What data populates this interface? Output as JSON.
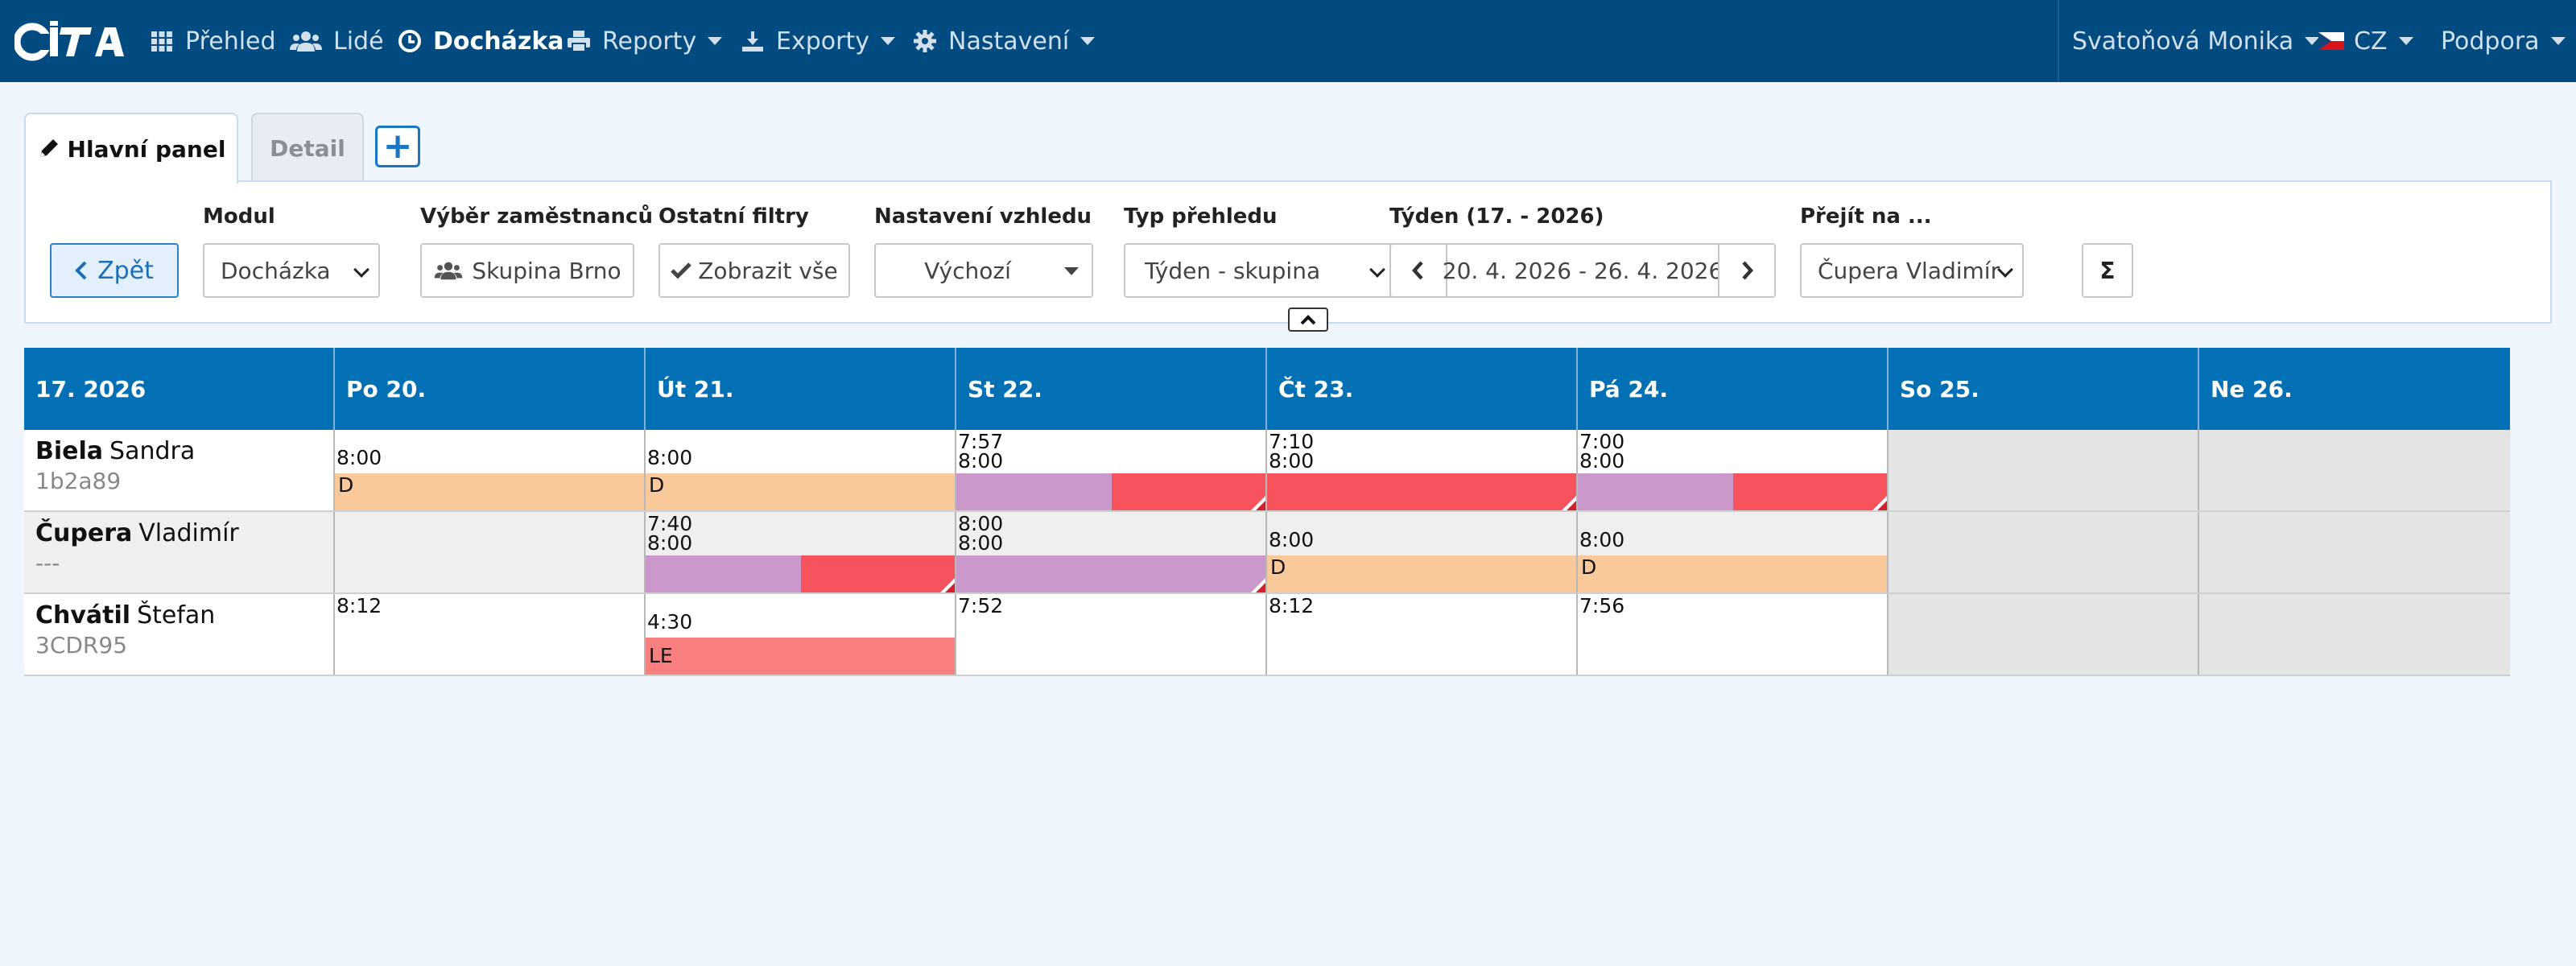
{
  "colors": {
    "nav_bg": "#014b81",
    "header_bg": "#0370b6",
    "vacation": "#f9c99c",
    "work_purple": "#cb98cb",
    "absence_red": "#f6535c",
    "leave_pink": "#fa7f7f",
    "weekend": "#e4e4e4"
  },
  "nav": {
    "logo_text": "CITA",
    "items": [
      {
        "label": "Přehled",
        "icon": "grid-icon"
      },
      {
        "label": "Lidé",
        "icon": "users-icon"
      },
      {
        "label": "Docházka",
        "icon": "clock-icon"
      },
      {
        "label": "Reporty",
        "icon": "printer-icon"
      },
      {
        "label": "Exporty",
        "icon": "export-icon"
      },
      {
        "label": "Nastavení",
        "icon": "gear-icon"
      }
    ],
    "user": "Svatoňová Monika",
    "language": "CZ",
    "support": "Podpora"
  },
  "tabs": {
    "main": "Hlavní panel",
    "detail": "Detail",
    "add": "+"
  },
  "filters": {
    "back": "Zpět",
    "module_label": "Modul",
    "module_value": "Docházka",
    "employees_label": "Výběr zaměstnanců",
    "employees_value": "Skupina Brno",
    "other_label": "Ostatní filtry",
    "other_value": "Zobrazit vše",
    "look_label": "Nastavení vzhledu",
    "look_value": "Výchozí",
    "view_label": "Typ přehledu",
    "view_value": "Týden - skupina",
    "week_label": "Týden (17. - 2026)",
    "week_range": "20. 4. 2026 - 26. 4. 2026",
    "goto_label": "Přejít na ...",
    "goto_value": "Čupera Vladimír",
    "sum": "Σ"
  },
  "grid": {
    "week_title": "17. 2026",
    "days": [
      "Po 20.",
      "Út 21.",
      "St 22.",
      "Čt 23.",
      "Pá 24.",
      "So 25.",
      "Ne 26."
    ],
    "rows": [
      {
        "last": "Biela",
        "first": "Sandra",
        "code": "1b2a89",
        "cells": [
          {
            "times": [
              "8:00"
            ],
            "bar": [
              {
                "type": "vacation",
                "label": "D",
                "w": 1
              }
            ]
          },
          {
            "times": [
              "8:00"
            ],
            "bar": [
              {
                "type": "vacation",
                "label": "D",
                "w": 1
              }
            ]
          },
          {
            "times": [
              "7:57",
              "8:00"
            ],
            "bar": [
              {
                "type": "work",
                "w": 0.5
              },
              {
                "type": "absence",
                "w": 0.5,
                "flag": true
              }
            ]
          },
          {
            "times": [
              "7:10",
              "8:00"
            ],
            "bar": [
              {
                "type": "absence",
                "w": 1,
                "flag": true
              }
            ]
          },
          {
            "times": [
              "7:00",
              "8:00"
            ],
            "bar": [
              {
                "type": "work",
                "w": 0.5
              },
              {
                "type": "absence",
                "w": 0.5,
                "flag": true
              }
            ]
          },
          {
            "weekend": true
          },
          {
            "weekend": true
          }
        ]
      },
      {
        "last": "Čupera",
        "first": "Vladimír",
        "code": "---",
        "cells": [
          {
            "times": []
          },
          {
            "times": [
              "7:40",
              "8:00"
            ],
            "bar": [
              {
                "type": "work",
                "w": 0.5
              },
              {
                "type": "absence",
                "w": 0.5,
                "flag": true
              }
            ]
          },
          {
            "times": [
              "8:00",
              "8:00"
            ],
            "bar": [
              {
                "type": "work",
                "w": 1,
                "flag": true
              }
            ]
          },
          {
            "times": [
              "8:00"
            ],
            "bar": [
              {
                "type": "vacation",
                "label": "D",
                "w": 1
              }
            ]
          },
          {
            "times": [
              "8:00"
            ],
            "bar": [
              {
                "type": "vacation",
                "label": "D",
                "w": 1
              }
            ]
          },
          {
            "weekend": true
          },
          {
            "weekend": true
          }
        ]
      },
      {
        "last": "Chvátil",
        "first": "Štefan",
        "code": "3CDR95",
        "cells": [
          {
            "times": [
              "8:12"
            ]
          },
          {
            "times": [
              "4:30"
            ],
            "bar": [
              {
                "type": "leave",
                "label": "LE",
                "w": 1
              }
            ]
          },
          {
            "times": [
              "7:52"
            ]
          },
          {
            "times": [
              "8:12"
            ]
          },
          {
            "times": [
              "7:56"
            ]
          },
          {
            "weekend": true
          },
          {
            "weekend": true
          }
        ]
      }
    ]
  }
}
